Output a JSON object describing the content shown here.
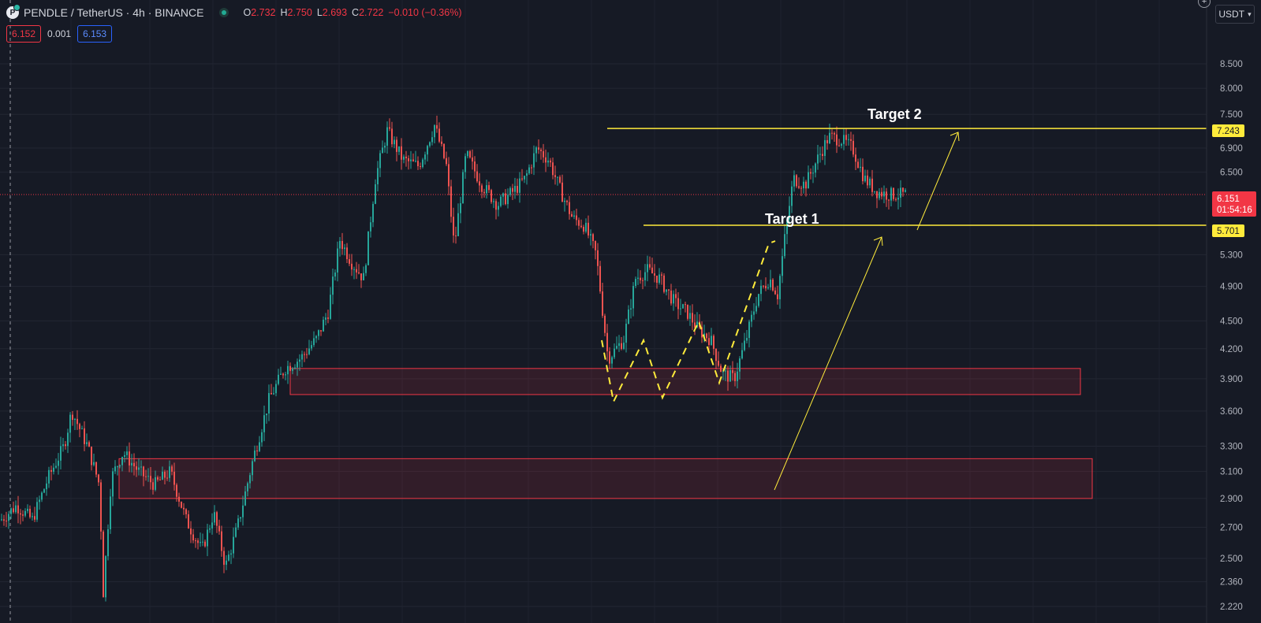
{
  "header": {
    "logo_icon": "pendle-logo-icon",
    "symbol": "PENDLE",
    "separator": "/",
    "quote": "TetherUS",
    "interval": "4h",
    "exchange": "BINANCE",
    "full_title": "PENDLE / TetherUS · 4h · BINANCE",
    "ohlc": {
      "o_label": "O",
      "o": "2.732",
      "h_label": "H",
      "h": "2.750",
      "l_label": "L",
      "l": "2.693",
      "c_label": "C",
      "c": "2.722",
      "change": "−0.010 (−0.36%)"
    }
  },
  "trade": {
    "sell": "6.152",
    "spread": "0.001",
    "buy": "6.153"
  },
  "currency": {
    "label": "USDT",
    "icon": "chevron-down-icon"
  },
  "colors": {
    "background": "#161a25",
    "up": "#26a69a",
    "down": "#ef5350",
    "level": "#ffeb3b",
    "zone_border": "#f23645",
    "current_price": "#f23645"
  },
  "chart_data": {
    "type": "candlestick",
    "y_scale": "log",
    "ylim": [
      2.2,
      9.0
    ],
    "y_ticks": [
      "8.500",
      "8.000",
      "7.500",
      "6.900",
      "6.500",
      "5.300",
      "4.900",
      "4.500",
      "4.200",
      "3.900",
      "3.600",
      "3.300",
      "3.100",
      "2.900",
      "2.700",
      "2.500",
      "2.360",
      "2.220"
    ],
    "current_price": {
      "value": 6.151,
      "label": "6.151",
      "countdown": "01:54:16"
    },
    "levels": [
      {
        "value": 7.243,
        "label": "7.243",
        "annotation": "Target 2"
      },
      {
        "value": 5.701,
        "label": "5.701",
        "annotation": "Target 1"
      }
    ],
    "zones": [
      {
        "name": "support-zone-upper",
        "low": 3.75,
        "high": 4.0
      },
      {
        "name": "support-zone-lower",
        "low": 2.9,
        "high": 3.2
      }
    ],
    "price_path": [
      [
        0,
        2.75
      ],
      [
        20,
        2.85
      ],
      [
        40,
        2.75
      ],
      [
        60,
        3.05
      ],
      [
        80,
        3.3
      ],
      [
        90,
        3.6
      ],
      [
        110,
        3.3
      ],
      [
        125,
        3.0
      ],
      [
        130,
        2.3
      ],
      [
        140,
        3.05
      ],
      [
        155,
        3.25
      ],
      [
        175,
        3.1
      ],
      [
        195,
        3.0
      ],
      [
        215,
        3.1
      ],
      [
        235,
        2.75
      ],
      [
        255,
        2.55
      ],
      [
        270,
        2.8
      ],
      [
        285,
        2.45
      ],
      [
        300,
        2.7
      ],
      [
        320,
        3.2
      ],
      [
        340,
        3.7
      ],
      [
        360,
        4.0
      ],
      [
        380,
        4.1
      ],
      [
        400,
        4.3
      ],
      [
        415,
        4.6
      ],
      [
        430,
        5.5
      ],
      [
        445,
        5.2
      ],
      [
        460,
        5.0
      ],
      [
        475,
        6.4
      ],
      [
        490,
        7.2
      ],
      [
        510,
        6.7
      ],
      [
        530,
        6.6
      ],
      [
        550,
        7.3
      ],
      [
        565,
        6.6
      ],
      [
        575,
        5.4
      ],
      [
        590,
        6.8
      ],
      [
        610,
        6.3
      ],
      [
        630,
        6.0
      ],
      [
        650,
        6.2
      ],
      [
        665,
        6.4
      ],
      [
        680,
        6.9
      ],
      [
        695,
        6.7
      ],
      [
        710,
        6.2
      ],
      [
        725,
        5.8
      ],
      [
        740,
        5.7
      ],
      [
        755,
        5.3
      ],
      [
        770,
        4.1
      ],
      [
        790,
        4.3
      ],
      [
        805,
        5.0
      ],
      [
        820,
        5.1
      ],
      [
        835,
        5.0
      ],
      [
        855,
        4.7
      ],
      [
        870,
        4.6
      ],
      [
        885,
        4.4
      ],
      [
        900,
        4.3
      ],
      [
        915,
        3.95
      ],
      [
        930,
        3.9
      ],
      [
        945,
        4.3
      ],
      [
        960,
        4.8
      ],
      [
        975,
        5.0
      ],
      [
        985,
        4.8
      ],
      [
        995,
        5.6
      ],
      [
        1005,
        6.4
      ],
      [
        1020,
        6.3
      ],
      [
        1035,
        6.7
      ],
      [
        1050,
        7.1
      ],
      [
        1065,
        7.05
      ],
      [
        1080,
        6.9
      ],
      [
        1095,
        6.4
      ],
      [
        1110,
        6.2
      ],
      [
        1125,
        6.15
      ]
    ],
    "annotations": [
      "Target 1",
      "Target 2"
    ]
  }
}
